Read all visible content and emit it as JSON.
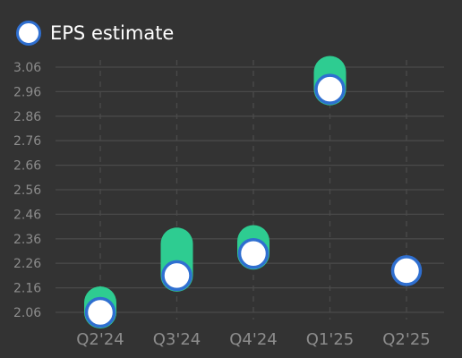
{
  "legend": {
    "label": "EPS estimate",
    "marker_fill": "#ffffff",
    "marker_stroke": "#2f6fd0"
  },
  "colors": {
    "background": "#333333",
    "grid": "#4a4a4a",
    "tick_label": "#8c8c8c",
    "range_bar": "#2ecc91",
    "estimate_fill": "#ffffff",
    "estimate_stroke": "#2f6fd0"
  },
  "chart_data": {
    "type": "scatter",
    "title": "",
    "xlabel": "",
    "ylabel": "",
    "categories": [
      "Q2'24",
      "Q3'24",
      "Q4'24",
      "Q1'25",
      "Q2'25"
    ],
    "yticks": [
      "3.06",
      "2.96",
      "2.86",
      "2.76",
      "2.66",
      "2.56",
      "2.46",
      "2.36",
      "2.26",
      "2.16",
      "2.06"
    ],
    "ylim": [
      2.06,
      3.06
    ],
    "grid": true,
    "legend_position": "top-left",
    "series": [
      {
        "name": "EPS estimate",
        "values": [
          2.06,
          2.21,
          2.3,
          2.97,
          2.23
        ]
      }
    ],
    "estimate_range": [
      {
        "low": 2.06,
        "high": 2.1
      },
      {
        "low": 2.21,
        "high": 2.34
      },
      {
        "low": 2.3,
        "high": 2.35
      },
      {
        "low": 2.97,
        "high": 3.04
      },
      null
    ]
  }
}
